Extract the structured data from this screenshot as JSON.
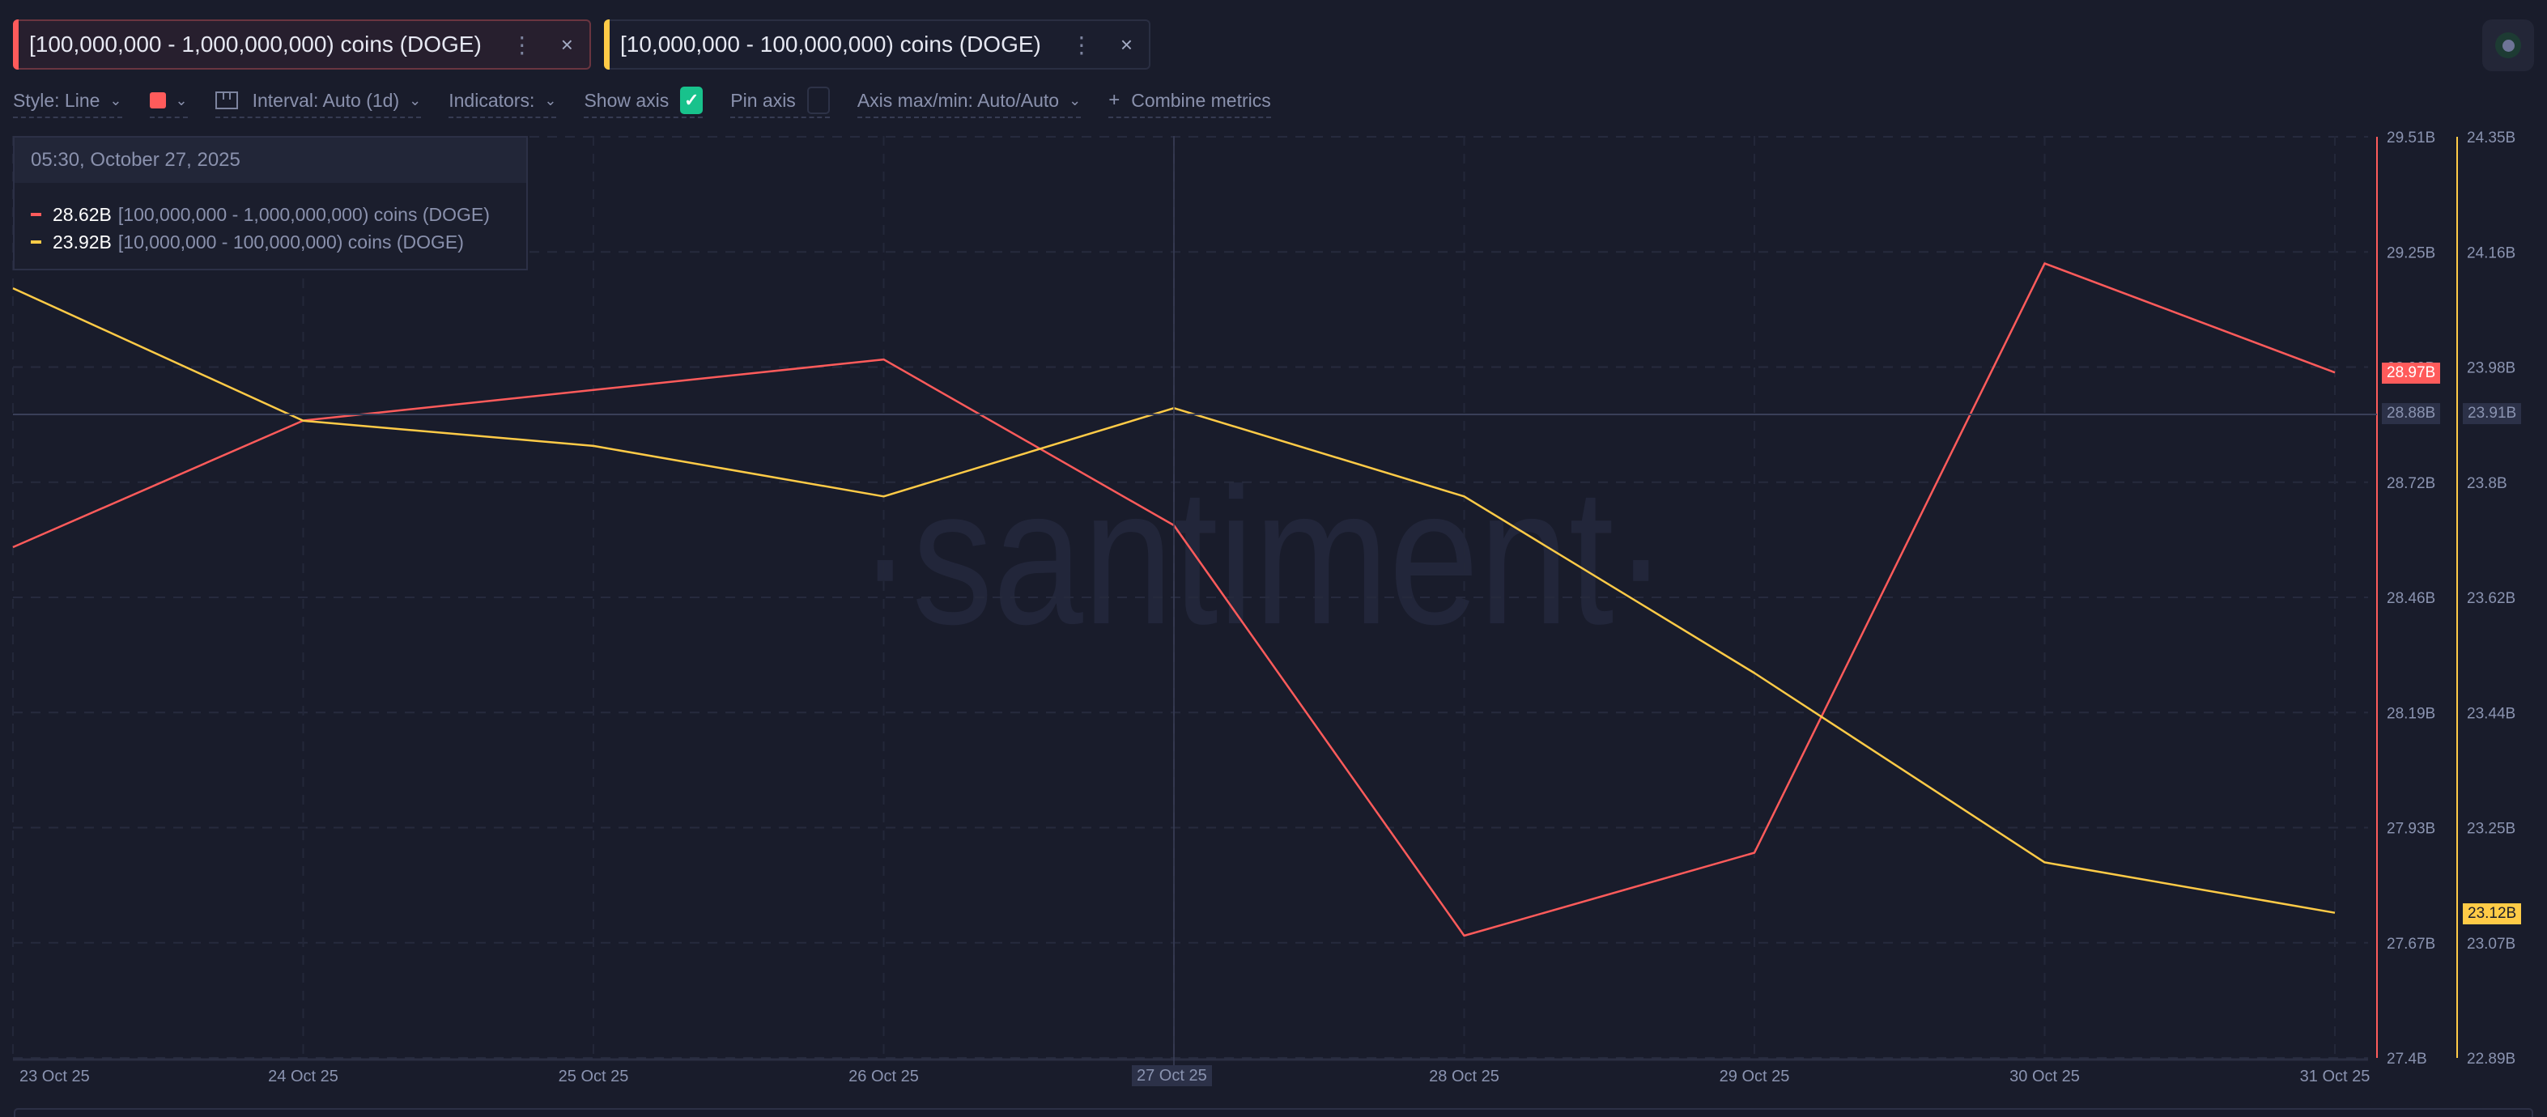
{
  "tabs": [
    {
      "label": "[100,000,000 - 1,000,000,000) coins (DOGE)",
      "color": "#ff5b5b",
      "menu_icon": "more-vertical-icon",
      "close_icon": "close-icon",
      "menu_glyph": "⋮",
      "close_glyph": "×"
    },
    {
      "label": "[10,000,000 - 100,000,000) coins (DOGE)",
      "color": "#ffcb47",
      "menu_icon": "more-vertical-icon",
      "close_icon": "close-icon",
      "menu_glyph": "⋮",
      "close_glyph": "×"
    }
  ],
  "toolbar": {
    "style_label": "Style: Line",
    "color_swatch": "#ff5b5b",
    "interval_label": "Interval: Auto (1d)",
    "indicators_label": "Indicators:",
    "show_axis_label": "Show axis",
    "show_axis_checked": true,
    "pin_axis_label": "Pin axis",
    "pin_axis_checked": false,
    "axis_maxmin_label": "Axis max/min: Auto/Auto",
    "combine_label": "Combine metrics",
    "chevron": "⌄",
    "check_glyph": "✓",
    "plus_glyph": "+"
  },
  "tooltip": {
    "datetime": "05:30, October 27, 2025",
    "rows": [
      {
        "value": "28.62B",
        "name": "[100,000,000 - 1,000,000,000) coins (DOGE)",
        "color": "#ff5b5b"
      },
      {
        "value": "23.92B",
        "name": "[10,000,000 - 100,000,000) coins (DOGE)",
        "color": "#ffcb47"
      }
    ]
  },
  "watermark": "·santiment·",
  "axis_badges": {
    "red_last": "28.97B",
    "yellow_last": "23.12B",
    "red_cursor": "28.88B",
    "yellow_cursor": "23.91B",
    "x_cursor": "27 Oct 25"
  },
  "chart_data": {
    "type": "line",
    "title": "",
    "x": [
      "23 Oct 25",
      "24 Oct 25",
      "25 Oct 25",
      "26 Oct 25",
      "27 Oct 25",
      "28 Oct 25",
      "29 Oct 25",
      "30 Oct 25",
      "31 Oct 25"
    ],
    "series": [
      {
        "name": "[100,000,000 - 1,000,000,000) coins (DOGE)",
        "color": "#ff5b5b",
        "axis": "right-1",
        "values": [
          28.57,
          28.86,
          28.93,
          29.0,
          28.62,
          27.68,
          27.87,
          29.22,
          28.97
        ],
        "unit": "B"
      },
      {
        "name": "[10,000,000 - 100,000,000) coins (DOGE)",
        "color": "#ffcb47",
        "axis": "right-2",
        "values": [
          24.11,
          23.9,
          23.86,
          23.78,
          23.92,
          23.78,
          23.5,
          23.2,
          23.12
        ],
        "unit": "B"
      }
    ],
    "y_axes": [
      {
        "id": "right-1",
        "ticks": [
          "29.51B",
          "29.25B",
          "28.99B",
          "28.72B",
          "28.46B",
          "28.19B",
          "27.93B",
          "27.67B",
          "27.4B"
        ],
        "ylim": [
          27.4,
          29.51
        ]
      },
      {
        "id": "right-2",
        "ticks": [
          "24.35B",
          "24.16B",
          "23.98B",
          "23.8B",
          "23.62B",
          "23.44B",
          "23.25B",
          "23.07B",
          "22.89B"
        ],
        "ylim": [
          22.89,
          24.35
        ]
      }
    ],
    "xlabel": "",
    "ylabel": "",
    "grid": true,
    "legend_position": "tabs-top"
  }
}
